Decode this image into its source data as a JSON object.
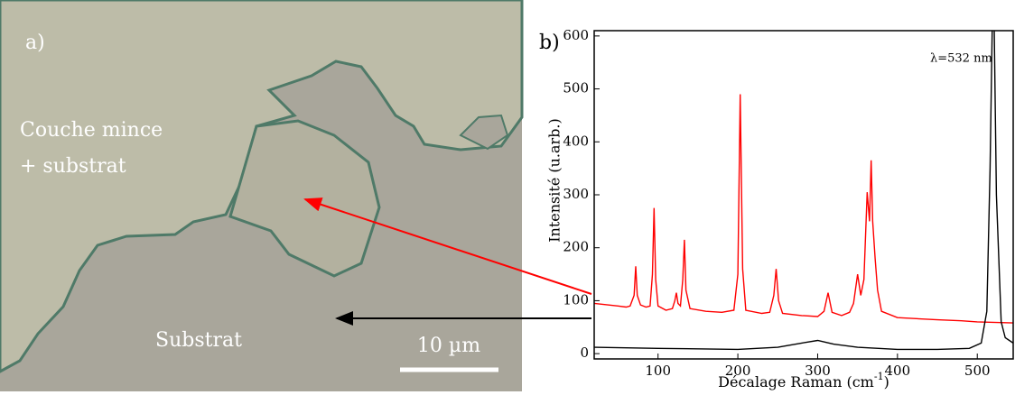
{
  "micrograph": {
    "panel_label": "a)",
    "film_label": [
      "Couche mince",
      "+ substrat"
    ],
    "substrate_label": "Substrat",
    "scale_bar": "10 µm"
  },
  "chart_data": {
    "type": "line",
    "panel_label": "b)",
    "annotation": "λ=532 nm",
    "x_label": {
      "text": "Décalage Raman (cm",
      "superscript": "-1",
      "suffix": ")"
    },
    "y_label": "Intensité (u.arb.)",
    "xlim": [
      20,
      545
    ],
    "ylim": [
      -10,
      610
    ],
    "xticks": [
      100,
      200,
      300,
      400,
      500
    ],
    "yticks": [
      0,
      100,
      200,
      300,
      400,
      500,
      600
    ],
    "grid": false,
    "series": [
      {
        "color": "#ff0000",
        "x": [
          20,
          50,
          60,
          65,
          70,
          72,
          74,
          78,
          85,
          90,
          93,
          95,
          97,
          100,
          110,
          118,
          121,
          123,
          125,
          128,
          131,
          133,
          135,
          140,
          160,
          180,
          195,
          200,
          203,
          206,
          210,
          230,
          240,
          245,
          248,
          251,
          256,
          280,
          300,
          308,
          313,
          318,
          330,
          340,
          345,
          350,
          354,
          358,
          362,
          365,
          367,
          369,
          372,
          375,
          380,
          400,
          450,
          480,
          500,
          545
        ],
        "values": [
          95,
          90,
          88,
          90,
          110,
          165,
          110,
          92,
          88,
          90,
          150,
          275,
          140,
          90,
          82,
          85,
          100,
          115,
          95,
          90,
          140,
          215,
          120,
          85,
          80,
          78,
          82,
          150,
          490,
          160,
          82,
          76,
          78,
          110,
          160,
          100,
          76,
          72,
          70,
          80,
          115,
          78,
          72,
          78,
          95,
          150,
          110,
          140,
          305,
          250,
          365,
          250,
          180,
          120,
          80,
          68,
          64,
          62,
          60,
          58
        ]
      },
      {
        "color": "#000000",
        "x": [
          20,
          100,
          200,
          250,
          280,
          300,
          320,
          350,
          400,
          450,
          490,
          505,
          512,
          516,
          519,
          521,
          524,
          530,
          535,
          545
        ],
        "values": [
          12,
          10,
          8,
          12,
          20,
          25,
          18,
          12,
          8,
          8,
          10,
          20,
          80,
          350,
          640,
          640,
          300,
          60,
          30,
          20
        ]
      }
    ]
  }
}
